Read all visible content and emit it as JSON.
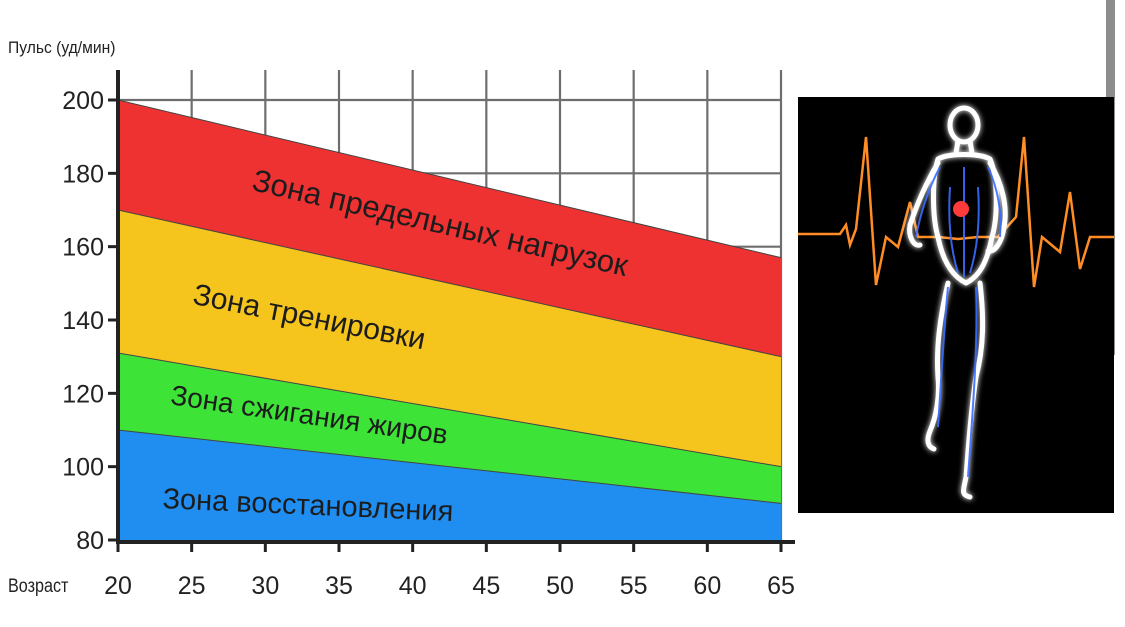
{
  "chart_data": {
    "type": "area",
    "title": "",
    "ylabel": "Пульс (уд/мин)",
    "xlabel": "Возраст",
    "x": [
      20,
      25,
      30,
      35,
      40,
      45,
      50,
      55,
      60,
      65
    ],
    "xlim": [
      20,
      65
    ],
    "ylim": [
      80,
      200
    ],
    "y_ticks": [
      80,
      100,
      120,
      140,
      160,
      180,
      200
    ],
    "grid": true,
    "zones": [
      {
        "name": "Зона восстановления",
        "color": "#1f8ef0",
        "lower": [
          80,
          80
        ],
        "upper": [
          110,
          90
        ]
      },
      {
        "name": "Зона сжигания жиров",
        "color": "#3ee338",
        "lower": [
          110,
          90
        ],
        "upper": [
          131,
          100
        ]
      },
      {
        "name": "Зона тренировки",
        "color": "#f5c51e",
        "lower": [
          131,
          100
        ],
        "upper": [
          170,
          130
        ]
      },
      {
        "name": "Зона предельных нагрузок",
        "color": "#ee3131",
        "lower": [
          170,
          130
        ],
        "upper": [
          200,
          157
        ]
      }
    ]
  },
  "image": {
    "icon": "running-human-anatomy-heartbeat-icon",
    "ecg_color": "#ff8c24",
    "glow_color": "#ffffff",
    "vessel_color": "#3b6cff",
    "heart_color": "#ff3a3a"
  }
}
